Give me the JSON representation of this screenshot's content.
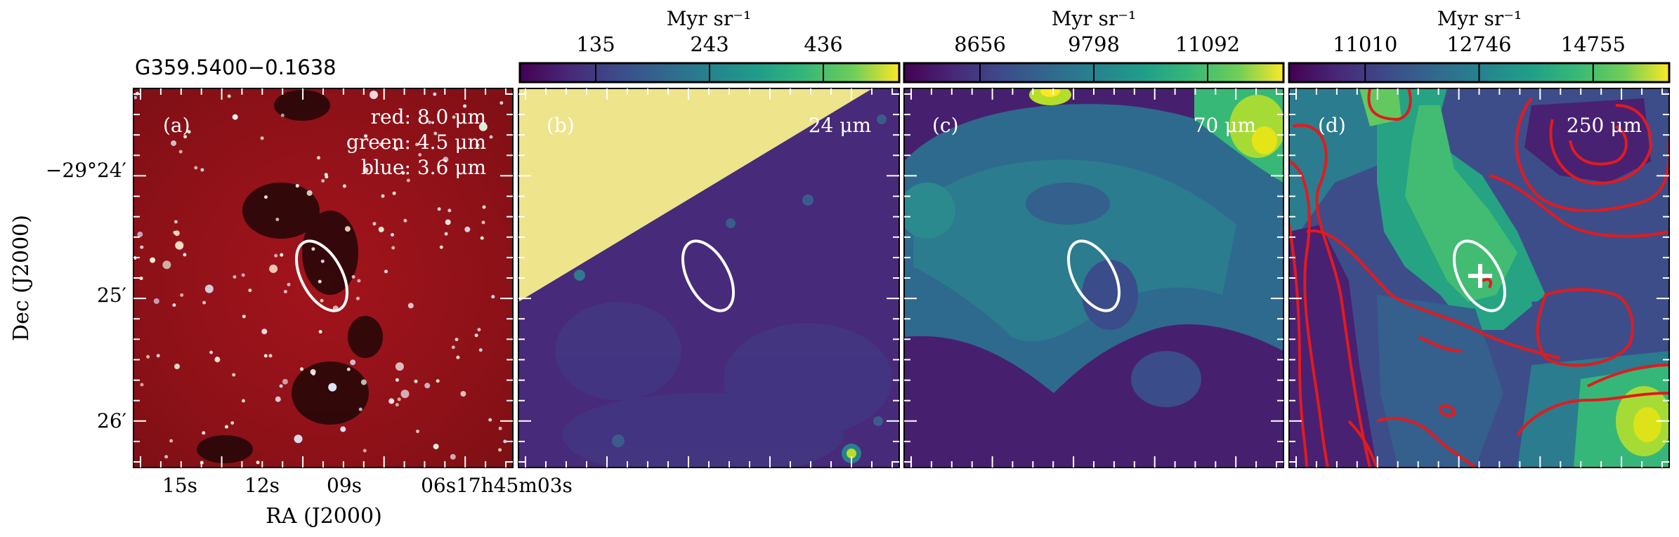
{
  "figure": {
    "source_name": "G359.5400−0.1638",
    "xlabel": "RA (J2000)",
    "ylabel": "Dec (J2000)",
    "ra_ticks": [
      "15s",
      "12s",
      "09s",
      "06s17h45m03s"
    ],
    "dec_ticks": [
      "−29°24′",
      "25′",
      "26′"
    ],
    "colors": {
      "frame": "#000000",
      "ellipse": "#ffffff",
      "contour": "#e31a1c",
      "mask": "#ede48c"
    }
  },
  "chart_data": [
    {
      "type": "heatmap",
      "panel": "(a)",
      "image": "three-color composite",
      "labels": [
        "red: 8.0 μm",
        "green: 4.5 μm",
        "blue: 3.6 μm"
      ],
      "source_ellipse": true
    },
    {
      "type": "heatmap",
      "panel": "(b)",
      "band": "24 μm",
      "colorbar": {
        "label": "Myr sr⁻¹",
        "ticks": [
          135,
          243,
          436
        ],
        "colormap": "viridis"
      },
      "masked_region": "upper-left",
      "source_ellipse": true
    },
    {
      "type": "heatmap",
      "panel": "(c)",
      "band": "70 μm",
      "colorbar": {
        "label": "Myr sr⁻¹",
        "ticks": [
          8656,
          9798,
          11092
        ],
        "colormap": "viridis"
      },
      "source_ellipse": true
    },
    {
      "type": "heatmap",
      "panel": "(d)",
      "band": "250 μm",
      "colorbar": {
        "label": "Myr sr⁻¹",
        "ticks": [
          11010,
          12746,
          14755
        ],
        "colormap": "viridis"
      },
      "contours": true,
      "source_ellipse": true,
      "peak_marker": "+"
    }
  ]
}
